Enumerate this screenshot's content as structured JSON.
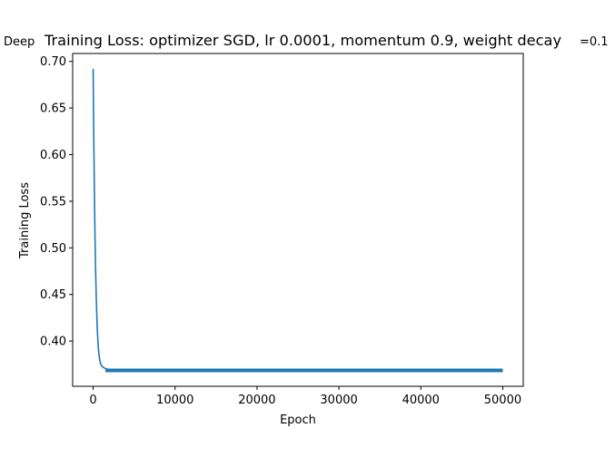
{
  "chart_data": {
    "type": "line",
    "title": "Deep Training Loss: optimizer SGD, lr 0.0001, momentum 0.9, weight decay =0.1",
    "title_parts": {
      "prefix": "Deep",
      "main": "Training Loss: optimizer SGD, lr 0.0001, momentum 0.9, weight decay",
      "suffix": "=0.1"
    },
    "xlabel": "Epoch",
    "ylabel": "Training Loss",
    "xlim": [
      -2500,
      52500
    ],
    "ylim": [
      0.3515,
      0.7085
    ],
    "xticks": [
      0,
      10000,
      20000,
      30000,
      40000,
      50000
    ],
    "xtick_labels": [
      "0",
      "10000",
      "20000",
      "30000",
      "40000",
      "50000"
    ],
    "yticks": [
      0.4,
      0.45,
      0.5,
      0.55,
      0.6,
      0.65,
      0.7
    ],
    "ytick_labels": [
      "0.40",
      "0.45",
      "0.50",
      "0.55",
      "0.60",
      "0.65",
      "0.70"
    ],
    "grid": false,
    "series_color": "#1f77b4",
    "noise_band": 0.0015,
    "series": [
      {
        "x": [
          0,
          50,
          100,
          150,
          200,
          250,
          300,
          400,
          500,
          600,
          700,
          800,
          900,
          1000,
          1200,
          1500,
          2000,
          2500,
          3000,
          5000,
          10000,
          20000,
          30000,
          40000,
          50000
        ],
        "values": [
          0.692,
          0.64,
          0.6,
          0.56,
          0.528,
          0.5,
          0.476,
          0.44,
          0.414,
          0.397,
          0.386,
          0.38,
          0.376,
          0.374,
          0.372,
          0.3705,
          0.3695,
          0.369,
          0.369,
          0.369,
          0.369,
          0.369,
          0.369,
          0.369,
          0.369
        ]
      }
    ]
  }
}
